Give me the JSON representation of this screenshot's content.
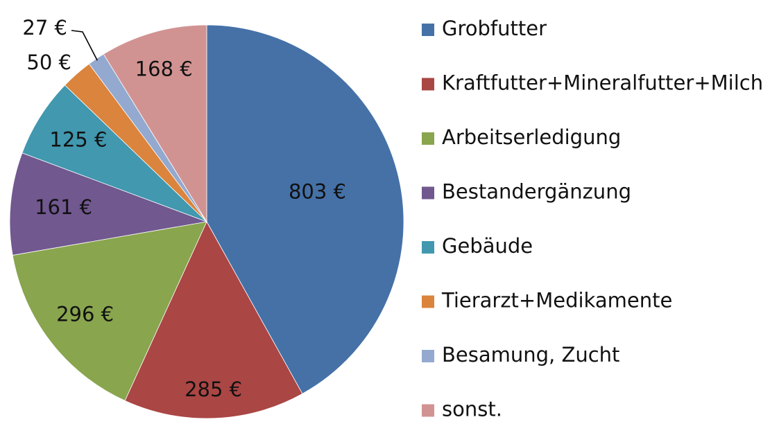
{
  "chart_data": {
    "type": "pie",
    "currency": "€",
    "start_angle_deg": 0,
    "direction": "clockwise",
    "legend_position": "right",
    "slices": [
      {
        "name": "Grobfutter",
        "value": 803,
        "label": "803 €",
        "color": "#4571A7"
      },
      {
        "name": "Kraftfutter+Mineralfutter+Milch",
        "value": 285,
        "label": "285 €",
        "color": "#AA4644"
      },
      {
        "name": "Arbeitserledigung",
        "value": 296,
        "label": "296 €",
        "color": "#89A54E"
      },
      {
        "name": "Bestandergänzung",
        "value": 161,
        "label": "161 €",
        "color": "#71588F"
      },
      {
        "name": "Gebäude",
        "value": 125,
        "label": "125 €",
        "color": "#4198AF"
      },
      {
        "name": "Tierarzt+Medikamente",
        "value": 50,
        "label": "50 €",
        "color": "#DB843D"
      },
      {
        "name": "Besamung, Zucht",
        "value": 27,
        "label": "27 €",
        "color": "#93A9CF"
      },
      {
        "name": "sonst.",
        "value": 168,
        "label": "168 €",
        "color": "#D19392"
      }
    ]
  }
}
